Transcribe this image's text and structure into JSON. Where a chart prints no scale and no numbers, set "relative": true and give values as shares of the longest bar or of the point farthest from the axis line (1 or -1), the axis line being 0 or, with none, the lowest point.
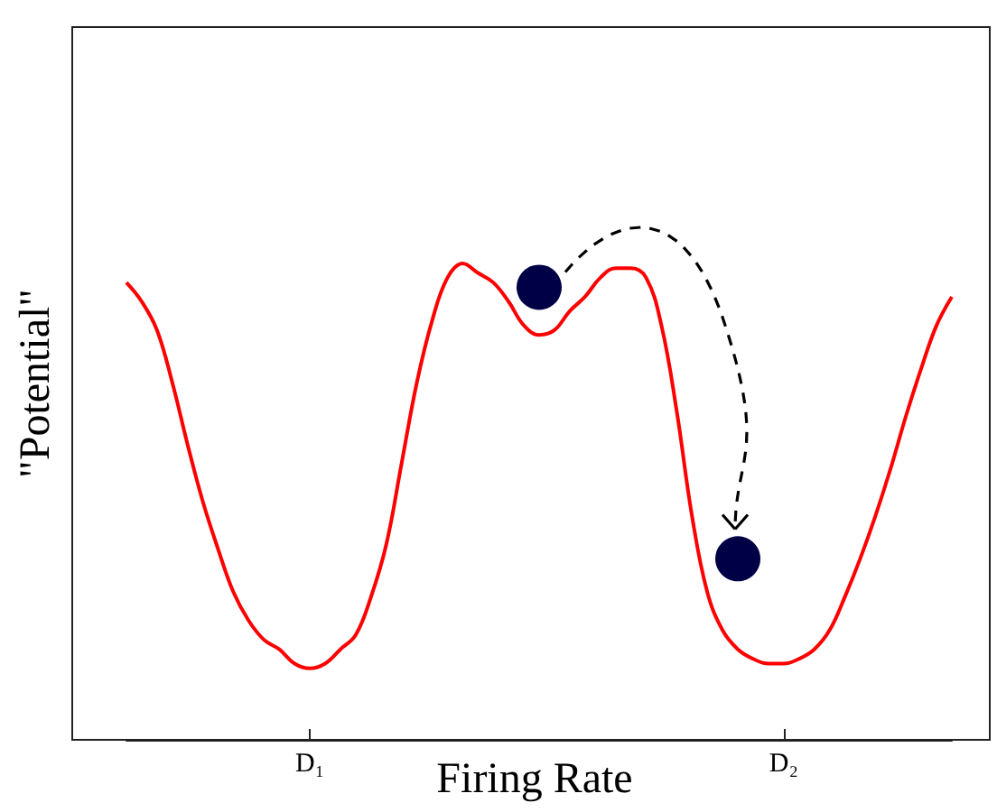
{
  "chart_data": {
    "type": "line",
    "xlabel": "Firing Rate",
    "ylabel": "\"Potential\"",
    "relative": true,
    "categories": [
      null,
      null,
      null,
      null,
      null,
      null,
      null,
      null,
      null,
      null,
      null,
      null,
      "D₁",
      null,
      null,
      null,
      null,
      null,
      null,
      null,
      null,
      null,
      null,
      null,
      null,
      null,
      null,
      null,
      null,
      null,
      null,
      null,
      null,
      null,
      null,
      null,
      null,
      null,
      null,
      null,
      null,
      null,
      null,
      "D₂",
      null,
      null,
      null,
      null,
      null,
      null,
      null,
      null,
      null,
      null,
      null
    ],
    "series": [
      {
        "type": "line",
        "color": "#ff0000",
        "values": [
          0.96,
          0.92,
          0.86,
          0.75,
          0.62,
          0.5,
          0.4,
          0.31,
          0.25,
          0.21,
          0.19,
          0.16,
          0.15,
          0.16,
          0.19,
          0.22,
          0.3,
          0.41,
          0.58,
          0.75,
          0.88,
          0.97,
          1,
          0.98,
          0.96,
          0.92,
          0.87,
          0.85,
          0.86,
          0.9,
          0.93,
          0.97,
          0.99,
          0.99,
          0.97,
          0.87,
          0.69,
          0.47,
          0.31,
          0.23,
          0.19,
          0.17,
          0.16,
          0.16,
          0.17,
          0.19,
          0.23,
          0.3,
          0.38,
          0.47,
          0.57,
          0.68,
          0.78,
          0.87,
          0.93
        ]
      },
      {
        "type": "scatter",
        "color": "#000046",
        "values": [
          null,
          null,
          null,
          null,
          null,
          null,
          null,
          null,
          null,
          null,
          null,
          null,
          null,
          null,
          null,
          null,
          null,
          null,
          null,
          null,
          null,
          null,
          null,
          null,
          null,
          null,
          null,
          0.95,
          null,
          null,
          null,
          null,
          null,
          null,
          null,
          null,
          null,
          null,
          null,
          null,
          0.38,
          null,
          null,
          null,
          null,
          null,
          null,
          null,
          null,
          null,
          null,
          null,
          null,
          null,
          null
        ]
      }
    ]
  }
}
